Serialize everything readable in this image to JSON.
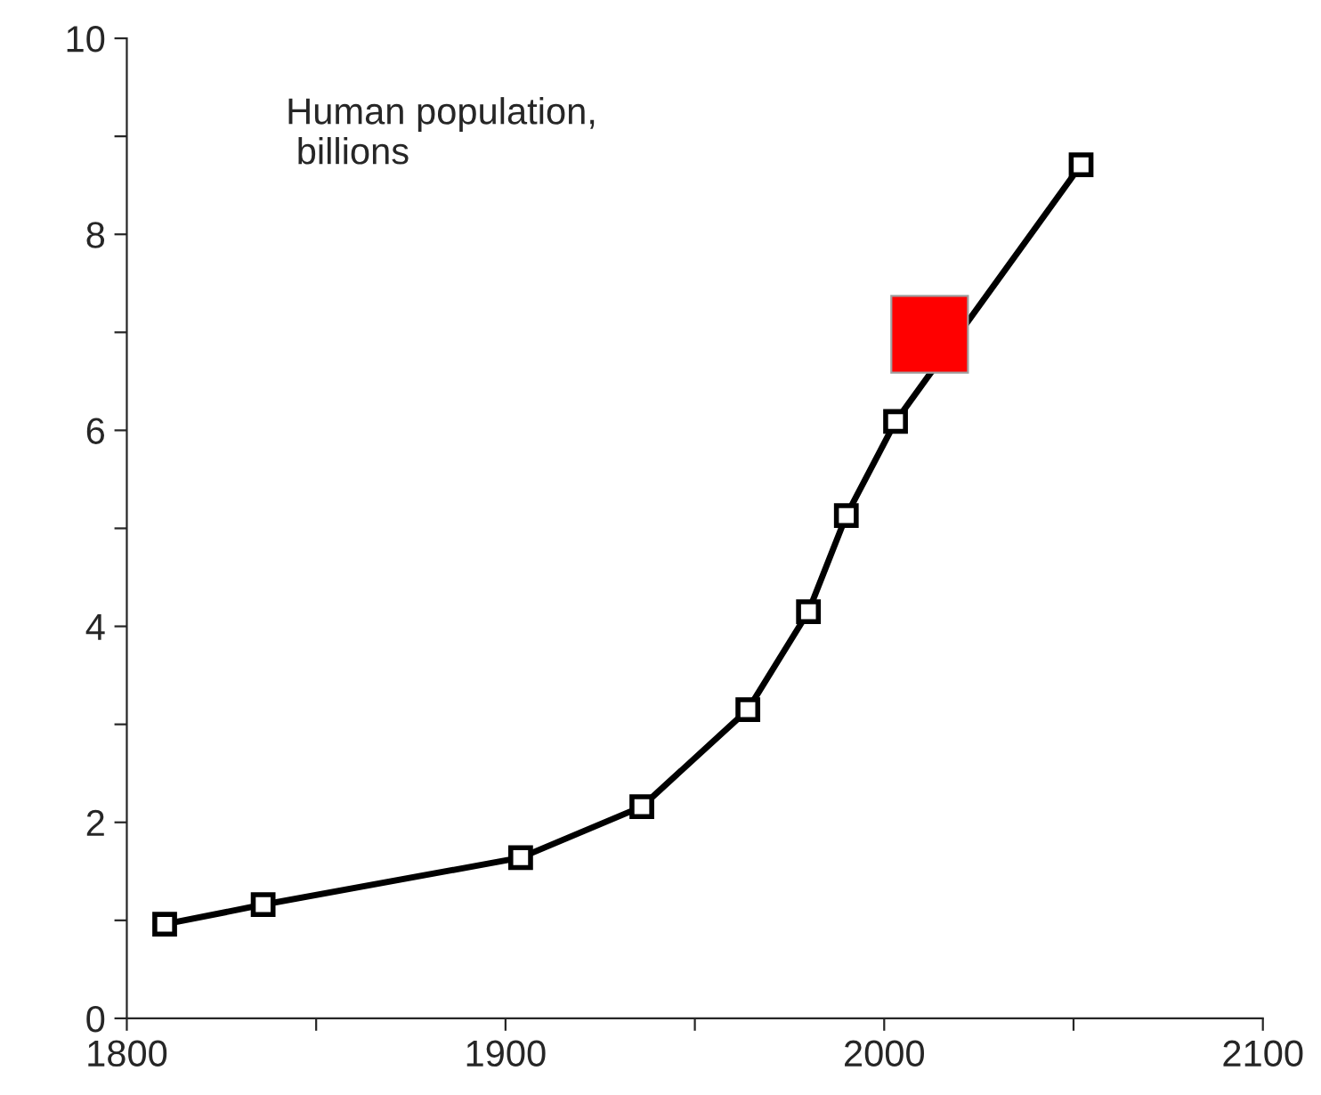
{
  "chart_data": {
    "type": "line",
    "annotations": [
      "Human population,\n billions"
    ],
    "series": [
      {
        "color": "#000000",
        "marker": "square",
        "x": [
          1810,
          1836,
          1904,
          1936,
          1964,
          1980,
          1990,
          2003,
          2052
        ],
        "values": [
          0.96,
          1.16,
          1.64,
          2.16,
          3.15,
          4.15,
          5.13,
          6.09,
          8.71
        ]
      },
      {
        "type": "scatter",
        "color": "#ff0000",
        "marker": "square",
        "x": [
          2012
        ],
        "values": [
          6.98
        ]
      }
    ],
    "xlim": [
      1800,
      2100
    ],
    "xticks": [
      1800,
      {
        "value": 1850,
        "label": null
      },
      1900,
      {
        "value": 1950,
        "label": null
      },
      2000,
      {
        "value": 2050,
        "label": null
      },
      2100
    ],
    "ylim": [
      0,
      10
    ],
    "yticks": [
      0,
      {
        "value": 1,
        "label": null
      },
      2,
      {
        "value": 3,
        "label": null
      },
      4,
      {
        "value": 5,
        "label": null
      },
      6,
      {
        "value": 7,
        "label": null
      },
      8,
      {
        "value": 9,
        "label": null
      },
      10
    ],
    "grid": false,
    "legend": false
  }
}
